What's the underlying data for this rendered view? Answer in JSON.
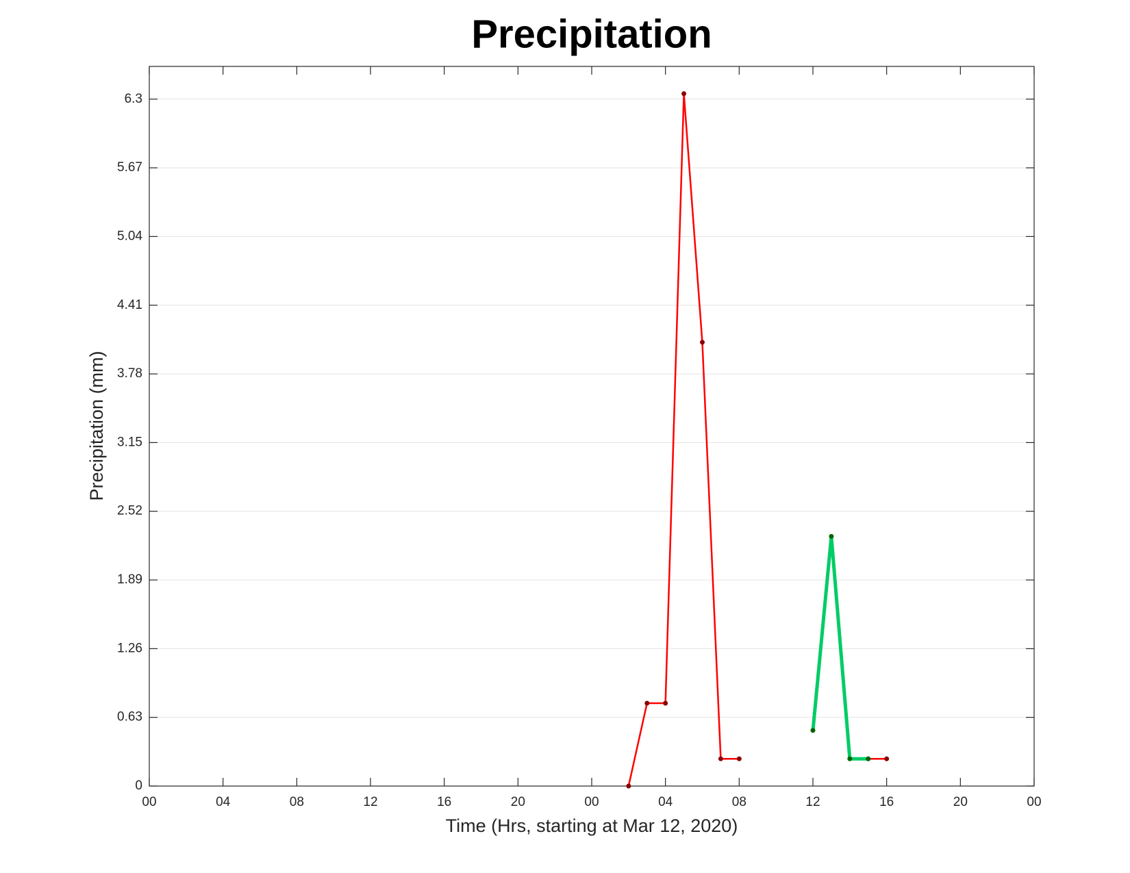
{
  "chart_data": {
    "type": "line",
    "title": "Precipitation",
    "xlabel": "Time (Hrs, starting at Mar 12, 2020)",
    "ylabel": "Precipitation (mm)",
    "x": [
      26,
      27,
      28,
      29,
      30,
      31,
      32,
      33,
      34,
      35,
      36,
      37,
      38,
      39,
      40
    ],
    "series": [
      {
        "color": "#ff0000",
        "marker_color": "#8b0000",
        "line_width": 2.5,
        "values": [
          0,
          0.76,
          0.76,
          6.35,
          4.07,
          0.25,
          0.25,
          null,
          null,
          null,
          null,
          null,
          null,
          0.25,
          0.25
        ]
      },
      {
        "color": "#00cc66",
        "marker_color": "#006400",
        "line_width": 5,
        "values": [
          null,
          null,
          null,
          null,
          null,
          null,
          null,
          null,
          null,
          null,
          0.51,
          2.29,
          0.25,
          0.25,
          null
        ]
      }
    ],
    "xlim": [
      0,
      48
    ],
    "xticks": [
      {
        "value": 0,
        "label": "00"
      },
      {
        "value": 4,
        "label": "04"
      },
      {
        "value": 8,
        "label": "08"
      },
      {
        "value": 12,
        "label": "12"
      },
      {
        "value": 16,
        "label": "16"
      },
      {
        "value": 20,
        "label": "20"
      },
      {
        "value": 24,
        "label": "00"
      },
      {
        "value": 28,
        "label": "04"
      },
      {
        "value": 32,
        "label": "08"
      },
      {
        "value": 36,
        "label": "12"
      },
      {
        "value": 40,
        "label": "16"
      },
      {
        "value": 44,
        "label": "20"
      },
      {
        "value": 48,
        "label": "00"
      }
    ],
    "ylim": [
      0,
      6.6
    ],
    "yticks": [
      0,
      0.63,
      1.26,
      1.89,
      2.52,
      3.15,
      3.78,
      4.41,
      5.04,
      5.67,
      6.3
    ],
    "grid": true
  }
}
